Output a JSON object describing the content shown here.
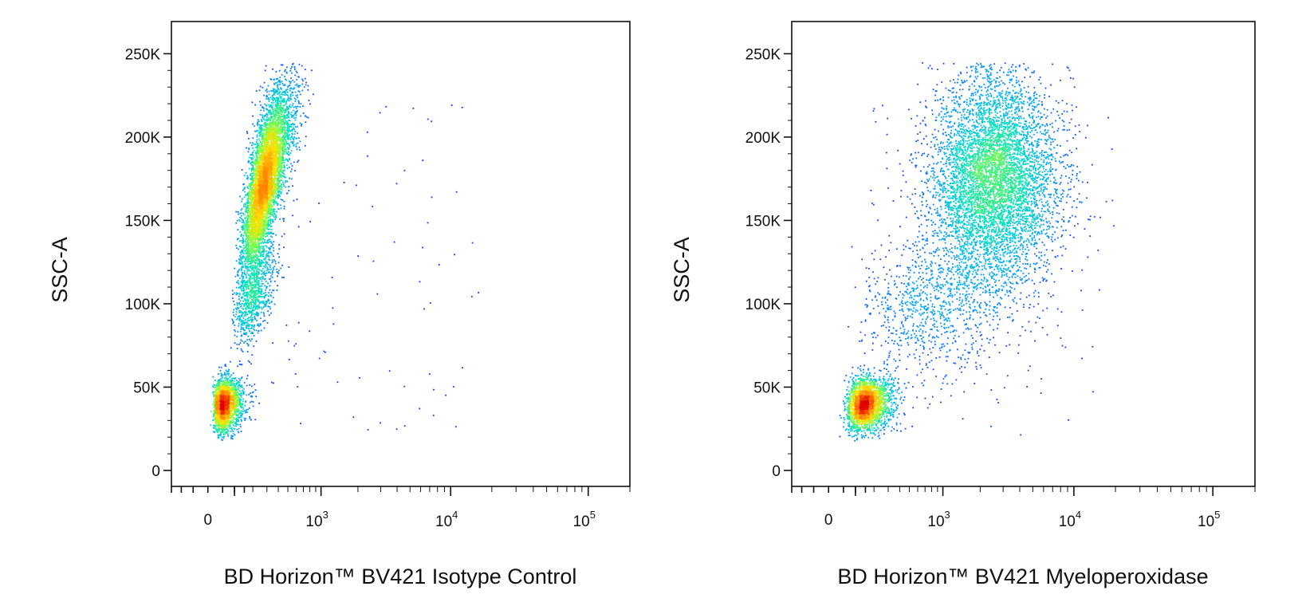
{
  "chart_data": [
    {
      "type": "scatter",
      "style": "flow cytometry pseudocolor density plot",
      "xlabel": "BD Horizon™ BV421 Isotype Control",
      "ylabel": "SSC-A",
      "x_scale": "biexponential",
      "y_scale": "linear",
      "ylim": [
        0,
        262144
      ],
      "y_ticks": [
        0,
        50000,
        100000,
        150000,
        200000,
        250000
      ],
      "y_tick_labels": [
        "0",
        "50K",
        "100K",
        "150K",
        "200K",
        "250K"
      ],
      "x_ticks": [
        0,
        1000,
        10000,
        100000
      ],
      "x_tick_labels": [
        "0",
        "10^3",
        "10^4",
        "10^5"
      ],
      "populations": [
        {
          "x_center": 55,
          "x_spread": 0.22,
          "y_center": 40000,
          "y_spread": 8000,
          "weight": 0.22,
          "tilt": 0.15
        },
        {
          "x_center": 280,
          "x_spread": 0.1,
          "y_center": 175000,
          "y_spread": 28000,
          "weight": 0.62,
          "tilt": 0.9
        },
        {
          "x_center": 200,
          "x_spread": 0.12,
          "y_center": 105000,
          "y_spread": 15000,
          "weight": 0.08,
          "tilt": 0.6
        }
      ],
      "color_scale": [
        "#1d1dff",
        "#00a0ff",
        "#00e0c0",
        "#80ff40",
        "#ffe000",
        "#ff8000",
        "#e00000"
      ],
      "grid": false,
      "legend": "none"
    },
    {
      "type": "scatter",
      "style": "flow cytometry pseudocolor density plot",
      "xlabel": "BD Horizon™ BV421 Myeloperoxidase",
      "ylabel": "SSC-A",
      "x_scale": "biexponential",
      "y_scale": "linear",
      "ylim": [
        0,
        262144
      ],
      "y_ticks": [
        0,
        50000,
        100000,
        150000,
        200000,
        250000
      ],
      "y_tick_labels": [
        "0",
        "50K",
        "100K",
        "150K",
        "200K",
        "250K"
      ],
      "x_ticks": [
        0,
        1000,
        10000,
        100000
      ],
      "x_tick_labels": [
        "0",
        "10^3",
        "10^4",
        "10^5"
      ],
      "populations": [
        {
          "x_center": 150,
          "x_spread": 0.17,
          "y_center": 40000,
          "y_spread": 8000,
          "weight": 0.25,
          "tilt": 0.2
        },
        {
          "x_center": 2500,
          "x_spread": 0.25,
          "y_center": 175000,
          "y_spread": 32000,
          "weight": 0.65,
          "tilt": 0.1
        },
        {
          "x_center": 800,
          "x_spread": 0.35,
          "y_center": 100000,
          "y_spread": 22000,
          "weight": 0.1,
          "tilt": 0.5
        }
      ],
      "color_scale": [
        "#1d1dff",
        "#00a0ff",
        "#00e0c0",
        "#80ff40",
        "#ffe000",
        "#ff8000",
        "#e00000"
      ],
      "grid": false,
      "legend": "none"
    }
  ]
}
